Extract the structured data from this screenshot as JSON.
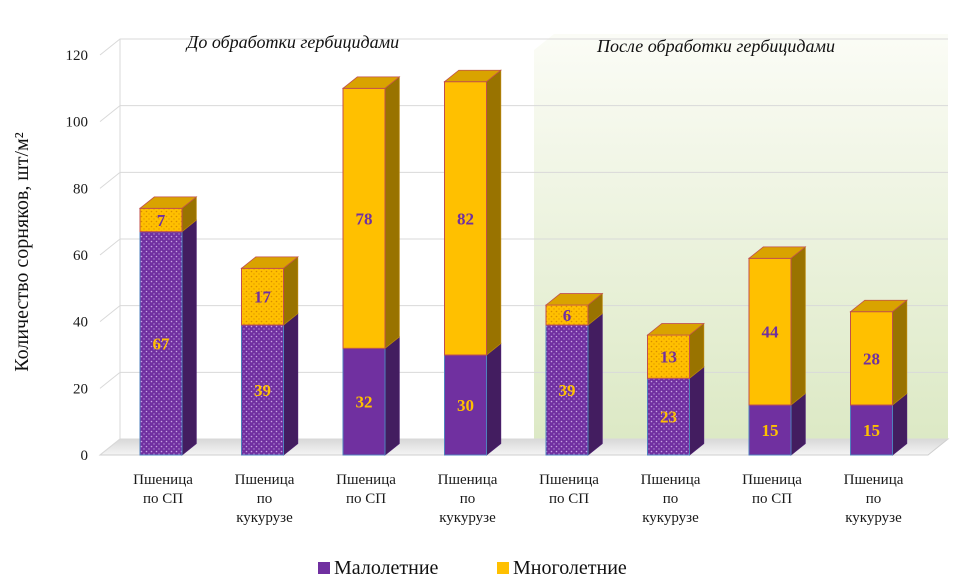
{
  "chart_data": {
    "type": "bar",
    "stacked": true,
    "categories": [
      [
        "Пшеница",
        "по СП"
      ],
      [
        "Пшеница",
        "по",
        "кукурузе"
      ],
      [
        "Пшеница",
        "по СП"
      ],
      [
        "Пшеница",
        "по",
        "кукурузе"
      ],
      [
        "Пшеница",
        "по СП"
      ],
      [
        "Пшеница",
        "по",
        "кукурузе"
      ],
      [
        "Пшеница",
        "по СП"
      ],
      [
        "Пшеница",
        "по",
        "кукурузе"
      ]
    ],
    "series": [
      {
        "name": "Малолетние",
        "values": [
          67,
          39,
          32,
          30,
          39,
          23,
          15,
          15
        ],
        "color": "#7030A0"
      },
      {
        "name": "Многолетние",
        "values": [
          7,
          17,
          78,
          82,
          6,
          13,
          44,
          28
        ],
        "color": "#FFC000"
      }
    ],
    "ylabel": "Количество сорняков, шт/м²",
    "ylim": [
      0,
      120
    ],
    "yticks": [
      0,
      20,
      40,
      60,
      80,
      100,
      120
    ],
    "panels": [
      "До обработки гербицидами",
      "После обработки гербицидами"
    ],
    "legend_position": "bottom"
  }
}
